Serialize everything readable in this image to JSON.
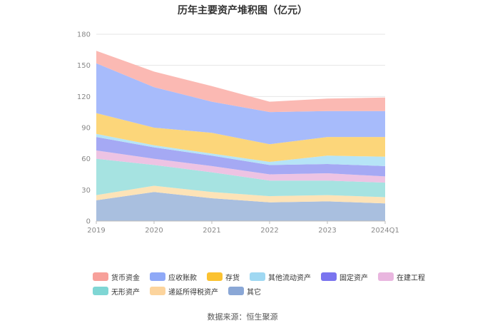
{
  "chart_data": {
    "type": "area",
    "title": "历年主要资产堆积图（亿元）",
    "categories": [
      "2019",
      "2020",
      "2021",
      "2022",
      "2023",
      "2024Q1"
    ],
    "ylim": [
      0,
      180
    ],
    "yticks": [
      0,
      30,
      60,
      90,
      120,
      150,
      180
    ],
    "stacked": true,
    "grid": true,
    "legend_position": "bottom",
    "series": [
      {
        "name": "其它",
        "color": "#a9bfdf",
        "values": [
          20,
          28,
          22,
          18,
          19,
          17
        ]
      },
      {
        "name": "递延所得税资产",
        "color": "#fde3b7",
        "values": [
          5,
          6,
          6,
          6,
          6,
          6
        ]
      },
      {
        "name": "无形资产",
        "color": "#a6e3e1",
        "values": [
          35,
          20,
          19,
          15,
          14,
          14
        ]
      },
      {
        "name": "在建工程",
        "color": "#edc3e3",
        "values": [
          8,
          6,
          6,
          6,
          7,
          6
        ]
      },
      {
        "name": "固定资产",
        "color": "#a5a9f4",
        "values": [
          13,
          11,
          10,
          9,
          9,
          10
        ]
      },
      {
        "name": "其他流动资产",
        "color": "#b6e4f7",
        "values": [
          3,
          2,
          2,
          3,
          8,
          9
        ]
      },
      {
        "name": "存货",
        "color": "#fcd67a",
        "values": [
          20,
          17,
          20,
          17,
          18,
          19
        ]
      },
      {
        "name": "应收账款",
        "color": "#a7bbfb",
        "values": [
          48,
          39,
          30,
          31,
          25,
          25
        ]
      },
      {
        "name": "货币资金",
        "color": "#fbb9b3",
        "values": [
          12,
          15,
          15,
          10,
          12,
          13
        ]
      }
    ],
    "legend_rows": [
      [
        "货币资金",
        "应收账款",
        "存货",
        "其他流动资产",
        "固定资产",
        "在建工程"
      ],
      [
        "无形资产",
        "递延所得税资产",
        "其它"
      ]
    ],
    "legend_colors": {
      "货币资金": "#f7a09a",
      "应收账款": "#8fa9f7",
      "存货": "#fbc231",
      "其他流动资产": "#9fd8f2",
      "固定资产": "#7a74ef",
      "在建工程": "#e9b6df",
      "无形资产": "#7fd6d4",
      "递延所得税资产": "#fcd49d",
      "其它": "#8aa7d6"
    }
  },
  "source_text": "数据来源：恒生聚源"
}
